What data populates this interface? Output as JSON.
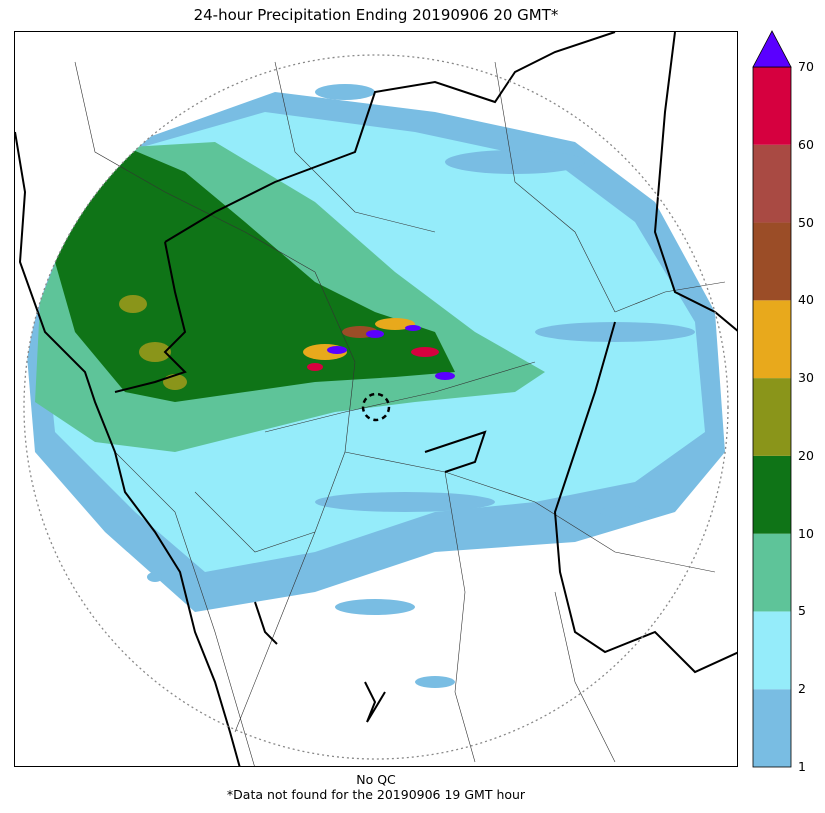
{
  "title": "24-hour Precipitation Ending 20190906 20 GMT*",
  "footnotes": {
    "qc": "No QC",
    "missing": "*Data not found for the 20190906 19 GMT hour"
  },
  "colorbar": {
    "levels": [
      {
        "label": "1",
        "color": "#79bde3"
      },
      {
        "label": "2",
        "color": "#95ecfa"
      },
      {
        "label": "5",
        "color": "#5ec499"
      },
      {
        "label": "10",
        "color": "#0f7417"
      },
      {
        "label": "20",
        "color": "#8a951a"
      },
      {
        "label": "30",
        "color": "#e8a91c"
      },
      {
        "label": "40",
        "color": "#9b4d27"
      },
      {
        "label": "50",
        "color": "#a94a43"
      },
      {
        "label": "60",
        "color": "#d6003f"
      },
      {
        "label": "70",
        "color": "#5a00ff"
      }
    ]
  },
  "map": {
    "range_ring": "dotted",
    "radar_site_marker": "dashed-circle"
  }
}
